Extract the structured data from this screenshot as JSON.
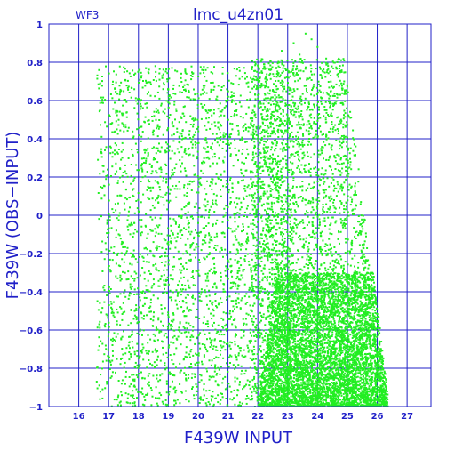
{
  "chart_data": {
    "type": "scatter",
    "title": "lmc_u4zn01",
    "corner_label": "WF3",
    "xlabel": "F439W INPUT",
    "ylabel": "F439W (OBS−INPUT)",
    "xlim": [
      15,
      27.8
    ],
    "ylim": [
      -1,
      1
    ],
    "x_ticks": [
      16,
      17,
      18,
      19,
      20,
      21,
      22,
      23,
      24,
      25,
      26,
      27
    ],
    "y_ticks": [
      -1,
      -0.8,
      -0.6,
      -0.4,
      -0.2,
      0,
      0.2,
      0.4,
      0.6,
      0.8,
      1
    ],
    "grid": true,
    "point_color": "#22ee22",
    "axis_color": "#2020c8",
    "series": [
      {
        "regions": [
          {
            "x_range": [
              16.6,
              23.2
            ],
            "y_range": [
              -1.0,
              0.78
            ],
            "count": 3200,
            "shape": "rect"
          },
          {
            "x_range": [
              21.8,
              26.4
            ],
            "y_range": [
              -1.0,
              0.82
            ],
            "count": 2600,
            "shape": "right-falloff"
          },
          {
            "x_range": [
              22.0,
              26.4
            ],
            "y_range": [
              -1.0,
              -0.3
            ],
            "count": 5500,
            "shape": "dense-core"
          }
        ],
        "outliers": [
          {
            "x": 23.6,
            "y": 0.95
          },
          {
            "x": 23.8,
            "y": 0.92
          },
          {
            "x": 23.2,
            "y": 0.9
          },
          {
            "x": 22.8,
            "y": 0.86
          },
          {
            "x": 24.0,
            "y": 0.88
          },
          {
            "x": 23.4,
            "y": 0.84
          }
        ]
      }
    ]
  }
}
